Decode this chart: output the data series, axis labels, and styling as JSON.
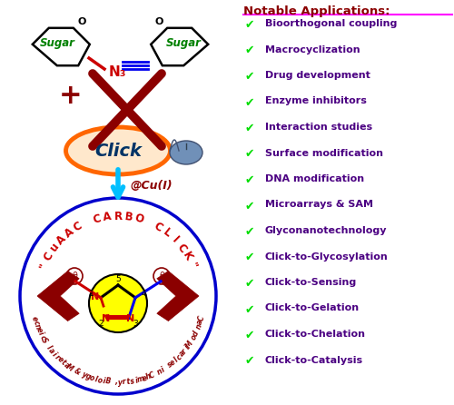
{
  "title": "Notable Applications:",
  "title_color": "#8B0000",
  "title_underline_color": "#FF00FF",
  "applications": [
    "Bioorthogonal coupling",
    "Macrocyclization",
    "Drug development",
    "Enzyme inhibitors",
    "Interaction studies",
    "Surface modification",
    "DNA modification",
    "Microarrays & SAM",
    "Glyconanotechnology",
    "Click-to-Glycosylation",
    "Click-to-Sensing",
    "Click-to-Gelation",
    "Click-to-Chelation",
    "Click-to-Catalysis"
  ],
  "check_color": "#00DD00",
  "app_text_color": "#4B0082",
  "app_text_bold_color": "#330033",
  "circle_blue": "#0000CC",
  "circle_red_text": "#CC0000",
  "circle_dark_red": "#8B0000",
  "click_oval_color": "#FF6600",
  "click_text_color": "#003366",
  "cu_text": "@Cu(I)",
  "cu_color": "#8B0000",
  "sugar_color": "#008000",
  "n3_color": "#CC0000",
  "alkyne_color": "#0000EE",
  "arrow_color": "#00BFFF",
  "plus_color": "#8B0000",
  "triazole_bg": "#FFFF00",
  "n_red": "#CC0000",
  "bond_blue": "#0000EE",
  "bond_black": "#000000",
  "dark_red_bracket": "#8B0000"
}
